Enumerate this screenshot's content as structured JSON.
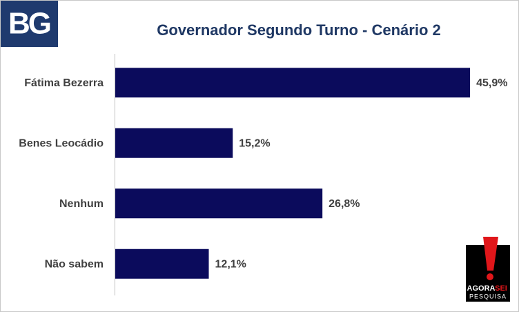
{
  "chart_data": {
    "type": "hbar",
    "title": "Governador Segundo Turno - Cenário 2",
    "categories": [
      "Fátima Bezerra",
      "Benes Leocádio",
      "Nenhum",
      "Não sabem"
    ],
    "values": [
      45.9,
      15.2,
      26.8,
      12.1
    ],
    "value_labels": [
      "45,9%",
      "15,2%",
      "26,8%",
      "12,1%"
    ],
    "color": "#0b0b5c"
  },
  "logos": {
    "brand": "BG",
    "agora": "AGORA",
    "sei": "SEI",
    "pesquisa": "PESQUISA"
  }
}
